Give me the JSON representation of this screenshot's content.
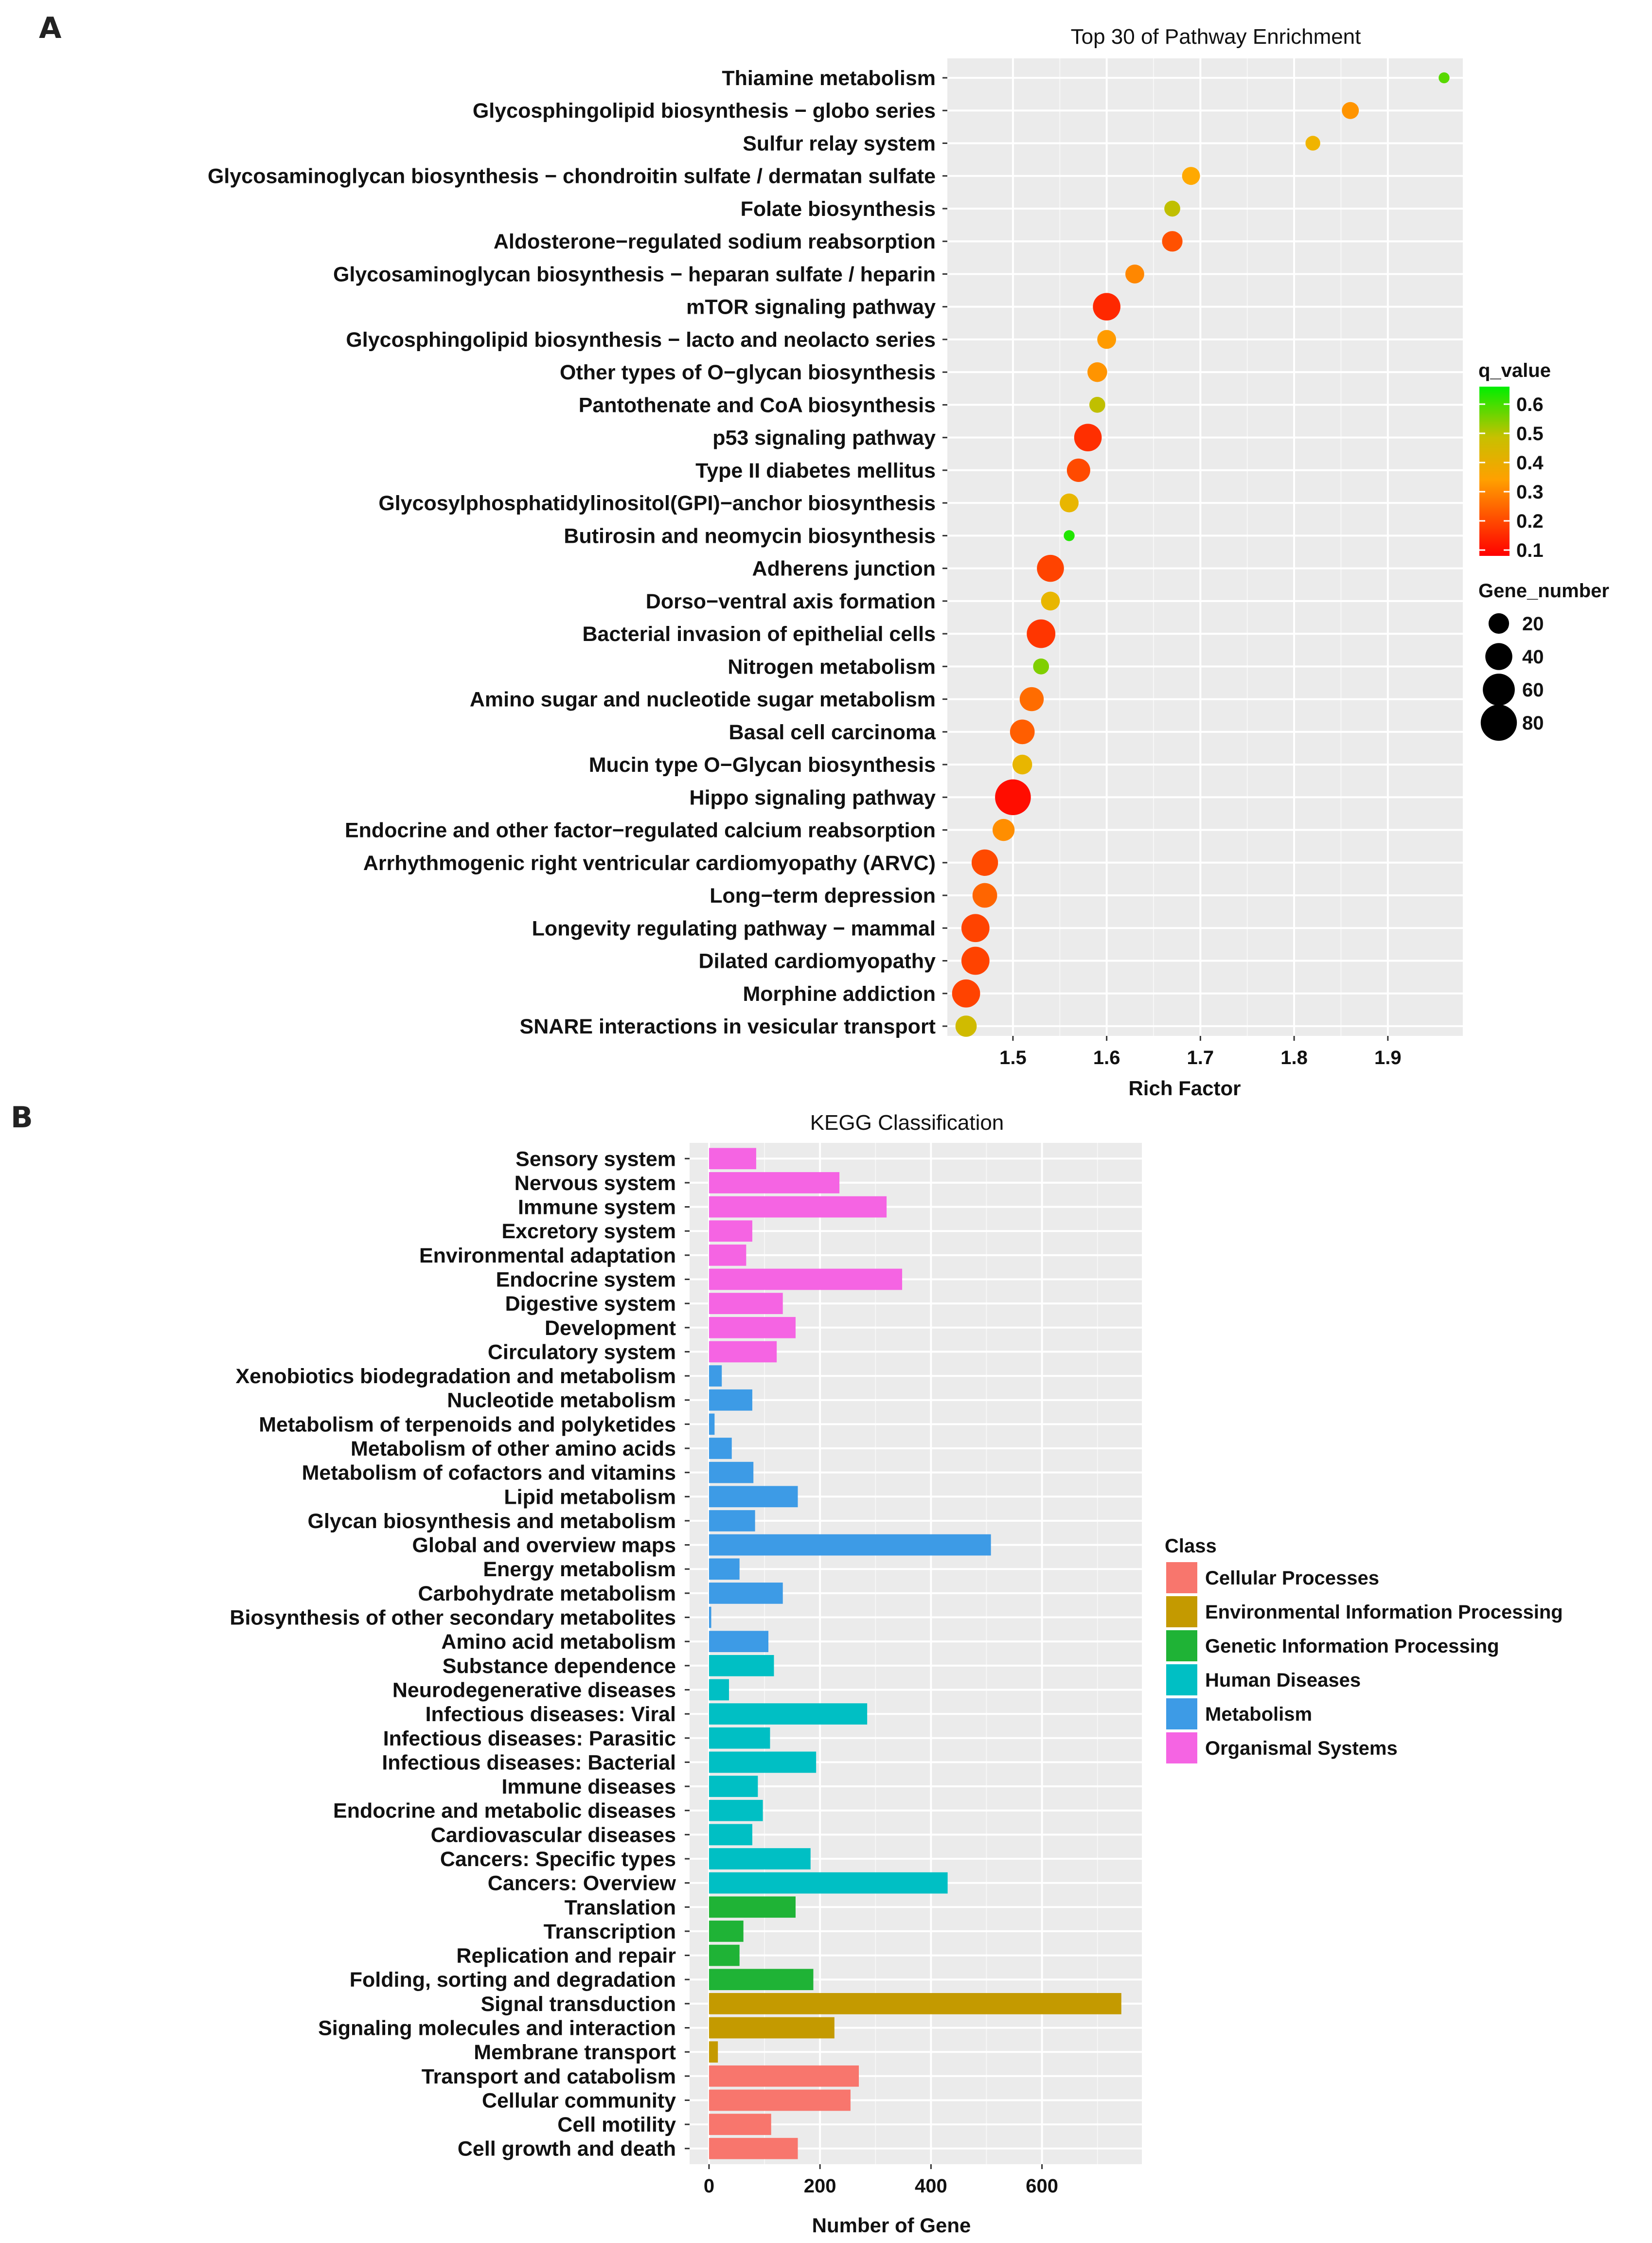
{
  "panels": {
    "a": "A",
    "b": "B"
  },
  "chart_data": [
    {
      "type": "scatter",
      "title": "Top 30 of Pathway Enrichment",
      "xlabel": "Rich Factor",
      "ylabel": "",
      "xlim": [
        1.43,
        1.98
      ],
      "xticks": [
        1.5,
        1.6,
        1.7,
        1.8,
        1.9
      ],
      "grid": true,
      "color_legend": {
        "title": "q_value",
        "ticks": [
          0.6,
          0.5,
          0.4,
          0.3,
          0.2,
          0.1
        ],
        "range": [
          0.08,
          0.66
        ],
        "low_color": "#ff0000",
        "mid_color": "#ffb000",
        "high_color": "#00ee00"
      },
      "size_legend": {
        "title": "Gene_number",
        "values": [
          20,
          40,
          60,
          80
        ]
      },
      "points": [
        {
          "pathway": "Thiamine metabolism",
          "rich_factor": 1.96,
          "q_value": 0.55,
          "gene_number": 3
        },
        {
          "pathway": "Glycosphingolipid biosynthesis − globo series",
          "rich_factor": 1.86,
          "q_value": 0.3,
          "gene_number": 12
        },
        {
          "pathway": "Sulfur relay system",
          "rich_factor": 1.82,
          "q_value": 0.36,
          "gene_number": 8
        },
        {
          "pathway": "Glycosaminoglycan biosynthesis − chondroitin sulfate / dermatan sulfate",
          "rich_factor": 1.69,
          "q_value": 0.33,
          "gene_number": 14
        },
        {
          "pathway": "Folate biosynthesis",
          "rich_factor": 1.67,
          "q_value": 0.42,
          "gene_number": 10
        },
        {
          "pathway": "Aldosterone−regulated sodium reabsorption",
          "rich_factor": 1.67,
          "q_value": 0.2,
          "gene_number": 20
        },
        {
          "pathway": "Glycosaminoglycan biosynthesis − heparan sulfate / heparin",
          "rich_factor": 1.63,
          "q_value": 0.28,
          "gene_number": 16
        },
        {
          "pathway": "mTOR signaling pathway",
          "rich_factor": 1.6,
          "q_value": 0.14,
          "gene_number": 42
        },
        {
          "pathway": "Glycosphingolipid biosynthesis − lacto and neolacto series",
          "rich_factor": 1.6,
          "q_value": 0.31,
          "gene_number": 16
        },
        {
          "pathway": "Other types of O−glycan biosynthesis",
          "rich_factor": 1.59,
          "q_value": 0.3,
          "gene_number": 18
        },
        {
          "pathway": "Pantothenate and CoA biosynthesis",
          "rich_factor": 1.59,
          "q_value": 0.42,
          "gene_number": 10
        },
        {
          "pathway": "p53 signaling pathway",
          "rich_factor": 1.58,
          "q_value": 0.15,
          "gene_number": 42
        },
        {
          "pathway": "Type II diabetes mellitus",
          "rich_factor": 1.57,
          "q_value": 0.19,
          "gene_number": 28
        },
        {
          "pathway": "Glycosylphosphatidylinositol(GPI)−anchor biosynthesis",
          "rich_factor": 1.56,
          "q_value": 0.37,
          "gene_number": 16
        },
        {
          "pathway": "Butirosin and neomycin biosynthesis",
          "rich_factor": 1.56,
          "q_value": 0.62,
          "gene_number": 3
        },
        {
          "pathway": "Adherens junction",
          "rich_factor": 1.54,
          "q_value": 0.18,
          "gene_number": 40
        },
        {
          "pathway": "Dorso−ventral axis formation",
          "rich_factor": 1.54,
          "q_value": 0.37,
          "gene_number": 16
        },
        {
          "pathway": "Bacterial invasion of epithelial cells",
          "rich_factor": 1.53,
          "q_value": 0.16,
          "gene_number": 46
        },
        {
          "pathway": "Nitrogen metabolism",
          "rich_factor": 1.53,
          "q_value": 0.5,
          "gene_number": 10
        },
        {
          "pathway": "Amino sugar and nucleotide sugar metabolism",
          "rich_factor": 1.52,
          "q_value": 0.24,
          "gene_number": 30
        },
        {
          "pathway": "Basal cell carcinoma",
          "rich_factor": 1.51,
          "q_value": 0.22,
          "gene_number": 32
        },
        {
          "pathway": "Mucin type O−Glycan biosynthesis",
          "rich_factor": 1.51,
          "q_value": 0.37,
          "gene_number": 18
        },
        {
          "pathway": "Hippo signaling pathway",
          "rich_factor": 1.5,
          "q_value": 0.1,
          "gene_number": 78
        },
        {
          "pathway": "Endocrine and other factor−regulated calcium reabsorption",
          "rich_factor": 1.49,
          "q_value": 0.29,
          "gene_number": 24
        },
        {
          "pathway": "Arrhythmogenic right ventricular cardiomyopathy (ARVC)",
          "rich_factor": 1.47,
          "q_value": 0.19,
          "gene_number": 38
        },
        {
          "pathway": "Long−term depression",
          "rich_factor": 1.47,
          "q_value": 0.23,
          "gene_number": 32
        },
        {
          "pathway": "Longevity regulating pathway − mammal",
          "rich_factor": 1.46,
          "q_value": 0.18,
          "gene_number": 44
        },
        {
          "pathway": "Dilated cardiomyopathy",
          "rich_factor": 1.46,
          "q_value": 0.18,
          "gene_number": 44
        },
        {
          "pathway": "Morphine addiction",
          "rich_factor": 1.45,
          "q_value": 0.18,
          "gene_number": 44
        },
        {
          "pathway": "SNARE interactions in vesicular transport",
          "rich_factor": 1.45,
          "q_value": 0.4,
          "gene_number": 22
        }
      ]
    },
    {
      "type": "bar",
      "orientation": "horizontal",
      "title": "KEGG Classification",
      "xlabel": "Number of Gene",
      "ylabel": "",
      "xlim": [
        -35,
        780
      ],
      "xticks": [
        0,
        200,
        400,
        600
      ],
      "grid": true,
      "legend": {
        "title": "Class",
        "position": "right",
        "entries": [
          {
            "name": "Cellular Processes",
            "color": "#f8766d"
          },
          {
            "name": "Environmental Information Processing",
            "color": "#c49a00"
          },
          {
            "name": "Genetic Information Processing",
            "color": "#1fb336"
          },
          {
            "name": "Human Diseases",
            "color": "#00bfc4"
          },
          {
            "name": "Metabolism",
            "color": "#3d9be6"
          },
          {
            "name": "Organismal Systems",
            "color": "#f564e3"
          }
        ]
      },
      "bars": [
        {
          "category": "Sensory system",
          "value": 85,
          "class": "Organismal Systems"
        },
        {
          "category": "Nervous system",
          "value": 235,
          "class": "Organismal Systems"
        },
        {
          "category": "Immune system",
          "value": 320,
          "class": "Organismal Systems"
        },
        {
          "category": "Excretory system",
          "value": 78,
          "class": "Organismal Systems"
        },
        {
          "category": "Environmental adaptation",
          "value": 67,
          "class": "Organismal Systems"
        },
        {
          "category": "Endocrine system",
          "value": 348,
          "class": "Organismal Systems"
        },
        {
          "category": "Digestive system",
          "value": 133,
          "class": "Organismal Systems"
        },
        {
          "category": "Development",
          "value": 156,
          "class": "Organismal Systems"
        },
        {
          "category": "Circulatory system",
          "value": 122,
          "class": "Organismal Systems"
        },
        {
          "category": "Xenobiotics biodegradation and metabolism",
          "value": 23,
          "class": "Metabolism"
        },
        {
          "category": "Nucleotide metabolism",
          "value": 78,
          "class": "Metabolism"
        },
        {
          "category": "Metabolism of terpenoids and polyketides",
          "value": 10,
          "class": "Metabolism"
        },
        {
          "category": "Metabolism of other amino acids",
          "value": 41,
          "class": "Metabolism"
        },
        {
          "category": "Metabolism of cofactors and vitamins",
          "value": 80,
          "class": "Metabolism"
        },
        {
          "category": "Lipid metabolism",
          "value": 160,
          "class": "Metabolism"
        },
        {
          "category": "Glycan biosynthesis and metabolism",
          "value": 83,
          "class": "Metabolism"
        },
        {
          "category": "Global and overview maps",
          "value": 508,
          "class": "Metabolism"
        },
        {
          "category": "Energy metabolism",
          "value": 55,
          "class": "Metabolism"
        },
        {
          "category": "Carbohydrate metabolism",
          "value": 133,
          "class": "Metabolism"
        },
        {
          "category": "Biosynthesis of other secondary metabolites",
          "value": 4,
          "class": "Metabolism"
        },
        {
          "category": "Amino acid metabolism",
          "value": 107,
          "class": "Metabolism"
        },
        {
          "category": "Substance dependence",
          "value": 117,
          "class": "Human Diseases"
        },
        {
          "category": "Neurodegenerative diseases",
          "value": 36,
          "class": "Human Diseases"
        },
        {
          "category": "Infectious diseases: Viral",
          "value": 285,
          "class": "Human Diseases"
        },
        {
          "category": "Infectious diseases: Parasitic",
          "value": 110,
          "class": "Human Diseases"
        },
        {
          "category": "Infectious diseases: Bacterial",
          "value": 193,
          "class": "Human Diseases"
        },
        {
          "category": "Immune diseases",
          "value": 88,
          "class": "Human Diseases"
        },
        {
          "category": "Endocrine and metabolic diseases",
          "value": 97,
          "class": "Human Diseases"
        },
        {
          "category": "Cardiovascular diseases",
          "value": 78,
          "class": "Human Diseases"
        },
        {
          "category": "Cancers: Specific types",
          "value": 183,
          "class": "Human Diseases"
        },
        {
          "category": "Cancers: Overview",
          "value": 430,
          "class": "Human Diseases"
        },
        {
          "category": "Translation",
          "value": 156,
          "class": "Genetic Information Processing"
        },
        {
          "category": "Transcription",
          "value": 62,
          "class": "Genetic Information Processing"
        },
        {
          "category": "Replication and repair",
          "value": 55,
          "class": "Genetic Information Processing"
        },
        {
          "category": "Folding, sorting and degradation",
          "value": 188,
          "class": "Genetic Information Processing"
        },
        {
          "category": "Signal transduction",
          "value": 743,
          "class": "Environmental Information Processing"
        },
        {
          "category": "Signaling molecules and interaction",
          "value": 226,
          "class": "Environmental Information Processing"
        },
        {
          "category": "Membrane transport",
          "value": 16,
          "class": "Environmental Information Processing"
        },
        {
          "category": "Transport and catabolism",
          "value": 270,
          "class": "Cellular Processes"
        },
        {
          "category": "Cellular community",
          "value": 255,
          "class": "Cellular Processes"
        },
        {
          "category": "Cell motility",
          "value": 112,
          "class": "Cellular Processes"
        },
        {
          "category": "Cell growth and death",
          "value": 160,
          "class": "Cellular Processes"
        }
      ]
    }
  ]
}
